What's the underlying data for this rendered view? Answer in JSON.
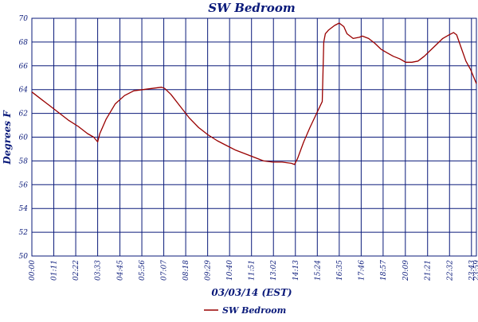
{
  "chart_data": {
    "type": "line",
    "title": "SW Bedroom",
    "xlabel": "03/03/14 (EST)",
    "ylabel": "Degrees F",
    "ylim": [
      50,
      70
    ],
    "yticks": [
      50,
      52,
      54,
      56,
      58,
      60,
      62,
      64,
      66,
      68,
      70
    ],
    "xlim": [
      "00:00",
      "23:59"
    ],
    "xticks": [
      "00:00",
      "01:11",
      "02:22",
      "03:33",
      "04:45",
      "05:56",
      "07:07",
      "08:18",
      "09:29",
      "10:40",
      "11:51",
      "13:02",
      "14:13",
      "15:24",
      "16:35",
      "17:46",
      "18:57",
      "20:09",
      "21:21",
      "22:32",
      "23:43",
      "23:59"
    ],
    "grid": true,
    "legend": "bottom",
    "colors": {
      "line": "#990000",
      "grid": "#0a1a7a",
      "text": "#0a1a7a"
    },
    "series": [
      {
        "name": "SW Bedroom",
        "x": [
          "00:00",
          "00:30",
          "01:00",
          "01:30",
          "02:00",
          "02:30",
          "03:00",
          "03:20",
          "03:33",
          "03:40",
          "04:00",
          "04:30",
          "05:00",
          "05:30",
          "06:00",
          "06:30",
          "07:00",
          "07:10",
          "07:30",
          "08:00",
          "08:30",
          "09:00",
          "09:30",
          "10:00",
          "10:30",
          "11:00",
          "11:30",
          "12:00",
          "12:30",
          "13:00",
          "13:30",
          "14:00",
          "14:10",
          "14:20",
          "14:40",
          "15:00",
          "15:20",
          "15:40",
          "15:45",
          "15:50",
          "16:00",
          "16:20",
          "16:35",
          "16:50",
          "17:00",
          "17:20",
          "17:40",
          "17:50",
          "18:10",
          "18:30",
          "18:50",
          "19:10",
          "19:30",
          "19:50",
          "20:10",
          "20:30",
          "20:50",
          "21:10",
          "21:30",
          "21:50",
          "22:10",
          "22:30",
          "22:45",
          "22:55",
          "23:10",
          "23:25",
          "23:40",
          "23:59"
        ],
        "values": [
          63.8,
          63.2,
          62.6,
          62.0,
          61.4,
          60.9,
          60.3,
          60.0,
          59.6,
          60.3,
          61.5,
          62.8,
          63.5,
          63.9,
          64.0,
          64.1,
          64.2,
          64.1,
          63.6,
          62.6,
          61.6,
          60.8,
          60.2,
          59.7,
          59.3,
          58.9,
          58.6,
          58.3,
          58.0,
          57.9,
          57.9,
          57.8,
          57.7,
          58.2,
          59.6,
          60.8,
          61.9,
          63.0,
          68.0,
          68.7,
          69.0,
          69.4,
          69.6,
          69.3,
          68.7,
          68.3,
          68.4,
          68.5,
          68.3,
          67.9,
          67.4,
          67.1,
          66.8,
          66.6,
          66.3,
          66.3,
          66.4,
          66.8,
          67.3,
          67.8,
          68.3,
          68.6,
          68.8,
          68.6,
          67.5,
          66.4,
          65.7,
          64.5
        ]
      }
    ]
  }
}
